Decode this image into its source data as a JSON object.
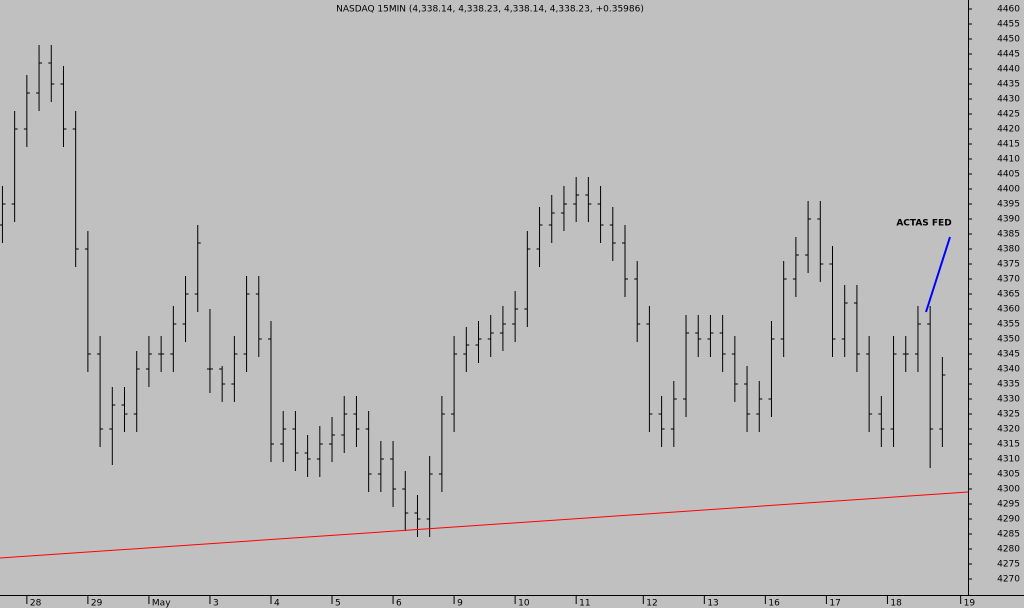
{
  "chart_data": {
    "type": "ohlc",
    "title": "NASDAQ 15MIN (4,338.14, 4,338.23, 4,338.14, 4,338.23, +0.35986)",
    "color": "#000000",
    "xlim": [
      -0.2,
      79.1
    ],
    "ylim": [
      4265,
      4463
    ],
    "xticks": [
      {
        "value": 2,
        "label": "28"
      },
      {
        "value": 7,
        "label": "29"
      },
      {
        "value": 12,
        "label": "May"
      },
      {
        "value": 17,
        "label": "3"
      },
      {
        "value": 22,
        "label": "4"
      },
      {
        "value": 27,
        "label": "5"
      },
      {
        "value": 32,
        "label": "6"
      },
      {
        "value": 37,
        "label": "9"
      },
      {
        "value": 42,
        "label": "10"
      },
      {
        "value": 47,
        "label": "11"
      },
      {
        "value": 52.5,
        "label": "12"
      },
      {
        "value": 57.5,
        "label": "13"
      },
      {
        "value": 62.5,
        "label": "16"
      },
      {
        "value": 67.5,
        "label": "17"
      },
      {
        "value": 72.5,
        "label": "18"
      },
      {
        "value": 78.5,
        "label": "19"
      }
    ],
    "yticks": [
      4270,
      4275,
      4280,
      4285,
      4290,
      4295,
      4300,
      4305,
      4310,
      4315,
      4320,
      4325,
      4330,
      4335,
      4340,
      4345,
      4350,
      4355,
      4360,
      4365,
      4370,
      4375,
      4380,
      4385,
      4390,
      4395,
      4400,
      4405,
      4410,
      4415,
      4420,
      4425,
      4430,
      4435,
      4440,
      4445,
      4450,
      4455,
      4460
    ],
    "open": [
      4388,
      4395,
      4420,
      4432,
      4442,
      4435,
      4420,
      4380,
      4345,
      4320,
      4328,
      4325,
      4340,
      4345,
      4345,
      4355,
      4365,
      4340,
      4340,
      4335,
      4345,
      4365,
      4350,
      4315,
      4320,
      4312,
      4310,
      4315,
      4318,
      4325,
      4320,
      4305,
      4310,
      4300,
      4292,
      4290,
      4305,
      4325,
      4345,
      4348,
      4350,
      4352,
      4355,
      4360,
      4380,
      4388,
      4392,
      4395,
      4398,
      4395,
      4388,
      4382,
      4370,
      4355,
      4325,
      4320,
      4330,
      4352,
      4350,
      4352,
      4345,
      4335,
      4325,
      4330,
      4350,
      4370,
      4378,
      4390,
      4375,
      4350,
      4362,
      4345,
      4325,
      4320,
      4345,
      4345,
      4355,
      4320
    ],
    "high": [
      4401,
      4426,
      4438,
      4448,
      4448,
      4441,
      4426,
      4386,
      4351,
      4334,
      4334,
      4346,
      4351,
      4351,
      4361,
      4371,
      4388,
      4360,
      4341,
      4351,
      4371,
      4371,
      4356,
      4326,
      4326,
      4318,
      4321,
      4324,
      4331,
      4331,
      4326,
      4316,
      4316,
      4306,
      4298,
      4311,
      4331,
      4351,
      4354,
      4356,
      4358,
      4361,
      4366,
      4386,
      4394,
      4398,
      4401,
      4404,
      4404,
      4401,
      4394,
      4388,
      4376,
      4361,
      4331,
      4336,
      4358,
      4358,
      4358,
      4358,
      4351,
      4341,
      4336,
      4356,
      4376,
      4384,
      4396,
      4396,
      4381,
      4368,
      4368,
      4351,
      4331,
      4351,
      4351,
      4361,
      4361,
      4344
    ],
    "low": [
      4382,
      4389,
      4414,
      4426,
      4429,
      4414,
      4374,
      4339,
      4314,
      4308,
      4319,
      4319,
      4334,
      4339,
      4339,
      4349,
      4359,
      4332,
      4329,
      4329,
      4339,
      4344,
      4309,
      4309,
      4306,
      4304,
      4304,
      4309,
      4312,
      4314,
      4299,
      4299,
      4294,
      4286,
      4284,
      4284,
      4299,
      4319,
      4339,
      4342,
      4344,
      4346,
      4349,
      4354,
      4374,
      4382,
      4386,
      4389,
      4389,
      4382,
      4376,
      4364,
      4349,
      4319,
      4314,
      4314,
      4324,
      4344,
      4344,
      4339,
      4329,
      4319,
      4319,
      4324,
      4344,
      4364,
      4372,
      4369,
      4344,
      4344,
      4339,
      4319,
      4314,
      4314,
      4339,
      4339,
      4307,
      4314
    ],
    "close": [
      4395,
      4420,
      4432,
      4442,
      4435,
      4420,
      4380,
      4345,
      4320,
      4328,
      4325,
      4340,
      4345,
      4345,
      4355,
      4365,
      4382,
      4340,
      4335,
      4345,
      4365,
      4350,
      4315,
      4320,
      4312,
      4310,
      4315,
      4318,
      4325,
      4320,
      4305,
      4310,
      4300,
      4292,
      4290,
      4305,
      4325,
      4345,
      4348,
      4350,
      4352,
      4355,
      4360,
      4380,
      4388,
      4392,
      4395,
      4398,
      4395,
      4388,
      4382,
      4370,
      4355,
      4325,
      4320,
      4330,
      4352,
      4350,
      4352,
      4345,
      4335,
      4325,
      4330,
      4350,
      4370,
      4378,
      4390,
      4375,
      4350,
      4362,
      4345,
      4325,
      4320,
      4345,
      4345,
      4355,
      4320,
      4338
    ],
    "trendline": {
      "x": [
        -0.2,
        79.1
      ],
      "y": [
        4277,
        4299
      ],
      "color": "#ff0000"
    },
    "annotation": {
      "text": "ACTAS FED",
      "color": "#0000ff"
    }
  }
}
